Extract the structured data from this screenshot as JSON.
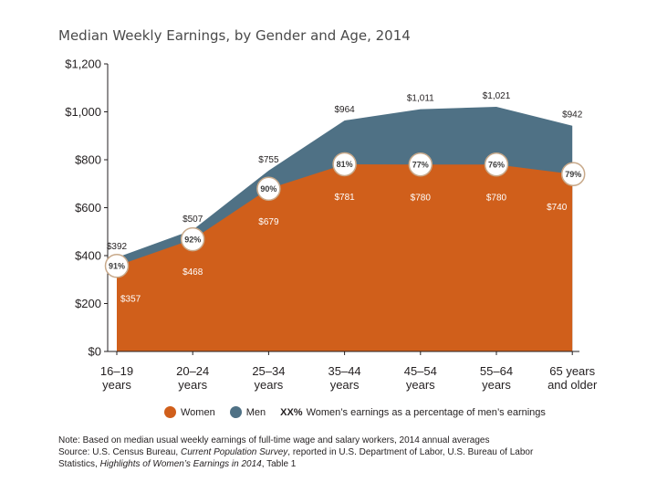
{
  "title": "Median Weekly Earnings, by Gender and Age, 2014",
  "chart_data": {
    "type": "area",
    "title": "Median Weekly Earnings, by Gender and Age, 2014",
    "categories": [
      [
        "16–19",
        "years"
      ],
      [
        "20–24",
        "years"
      ],
      [
        "25–34",
        "years"
      ],
      [
        "35–44",
        "years"
      ],
      [
        "45–54",
        "years"
      ],
      [
        "55–64",
        "years"
      ],
      [
        "65 years",
        "and older"
      ]
    ],
    "series": [
      {
        "name": "Men",
        "color": "#4f7185",
        "values": [
          392,
          507,
          755,
          964,
          1011,
          1021,
          942
        ],
        "labels": [
          "$392",
          "$507",
          "$755",
          "$964",
          "$1,011",
          "$1,021",
          "$942"
        ]
      },
      {
        "name": "Women",
        "color": "#d05f1b",
        "values": [
          357,
          468,
          679,
          781,
          780,
          780,
          740
        ],
        "labels": [
          "$357",
          "$468",
          "$679",
          "$781",
          "$780",
          "$780",
          "$740"
        ]
      }
    ],
    "percentages": [
      "91%",
      "92%",
      "90%",
      "81%",
      "77%",
      "76%",
      "79%"
    ],
    "ylim": [
      0,
      1200
    ],
    "yticks": [
      0,
      200,
      400,
      600,
      800,
      1000,
      1200
    ],
    "ytick_labels": [
      "$0",
      "$200",
      "$400",
      "$600",
      "$800",
      "$1,000",
      "$1,200"
    ],
    "grid": false,
    "legend_position": "bottom"
  },
  "legend": {
    "women": "Women",
    "men": "Men",
    "pct_marker": "XX%",
    "pct_text": "Women’s earnings as a percentage of men’s earnings"
  },
  "notes": {
    "line1": "Note: Based on median usual weekly earnings of full-time wage and salary workers, 2014 annual averages",
    "line2_pre": "Source: U.S. Census Bureau, ",
    "line2_italic": "Current Population Survey",
    "line2_post": ", reported in U.S. Department of Labor, U.S. Bureau of Labor",
    "line3_pre": "Statistics, ",
    "line3_italic": "Highlights of Women’s Earnings in 2014",
    "line3_post": ", Table 1"
  },
  "colors": {
    "women": "#d05f1b",
    "men": "#4f7185",
    "circle_fill": "#ffffff",
    "circle_stroke": "#c8a98a"
  }
}
